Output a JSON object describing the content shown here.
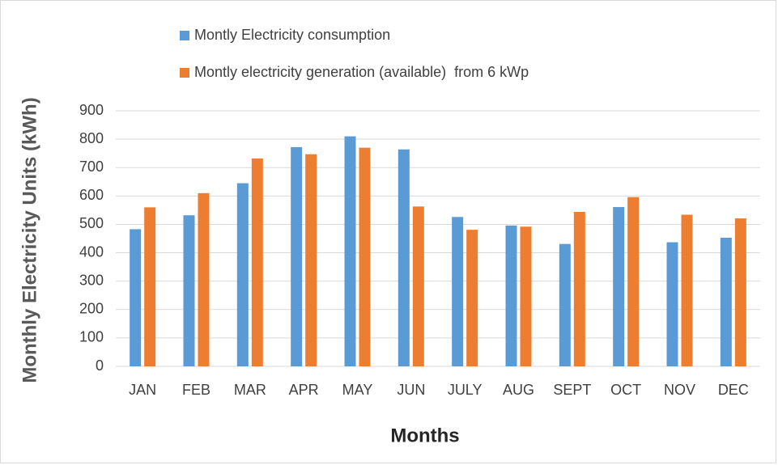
{
  "chart_data": {
    "type": "bar",
    "x_label": "Months",
    "y_label": "Monthly Electricity Units (kWh)",
    "categories": [
      "JAN",
      "FEB",
      "MAR",
      "APR",
      "MAY",
      "JUN",
      "JULY",
      "AUG",
      "SEPT",
      "OCT",
      "NOV",
      "DEC"
    ],
    "series": [
      {
        "name": "Montly Electricity consumption",
        "color": "#5b9bd5",
        "values": [
          483,
          532,
          645,
          772,
          810,
          764,
          526,
          496,
          431,
          561,
          437,
          453
        ]
      },
      {
        "name": "Montly electricity generation (available)  from 6 kWp",
        "color": "#ed7d31",
        "values": [
          560,
          610,
          732,
          747,
          770,
          563,
          481,
          492,
          544,
          596,
          534,
          521
        ]
      }
    ],
    "ylim": [
      0,
      900
    ],
    "yticks": [
      0,
      100,
      200,
      300,
      400,
      500,
      600,
      700,
      800,
      900
    ],
    "grid": true,
    "legend": "top"
  }
}
